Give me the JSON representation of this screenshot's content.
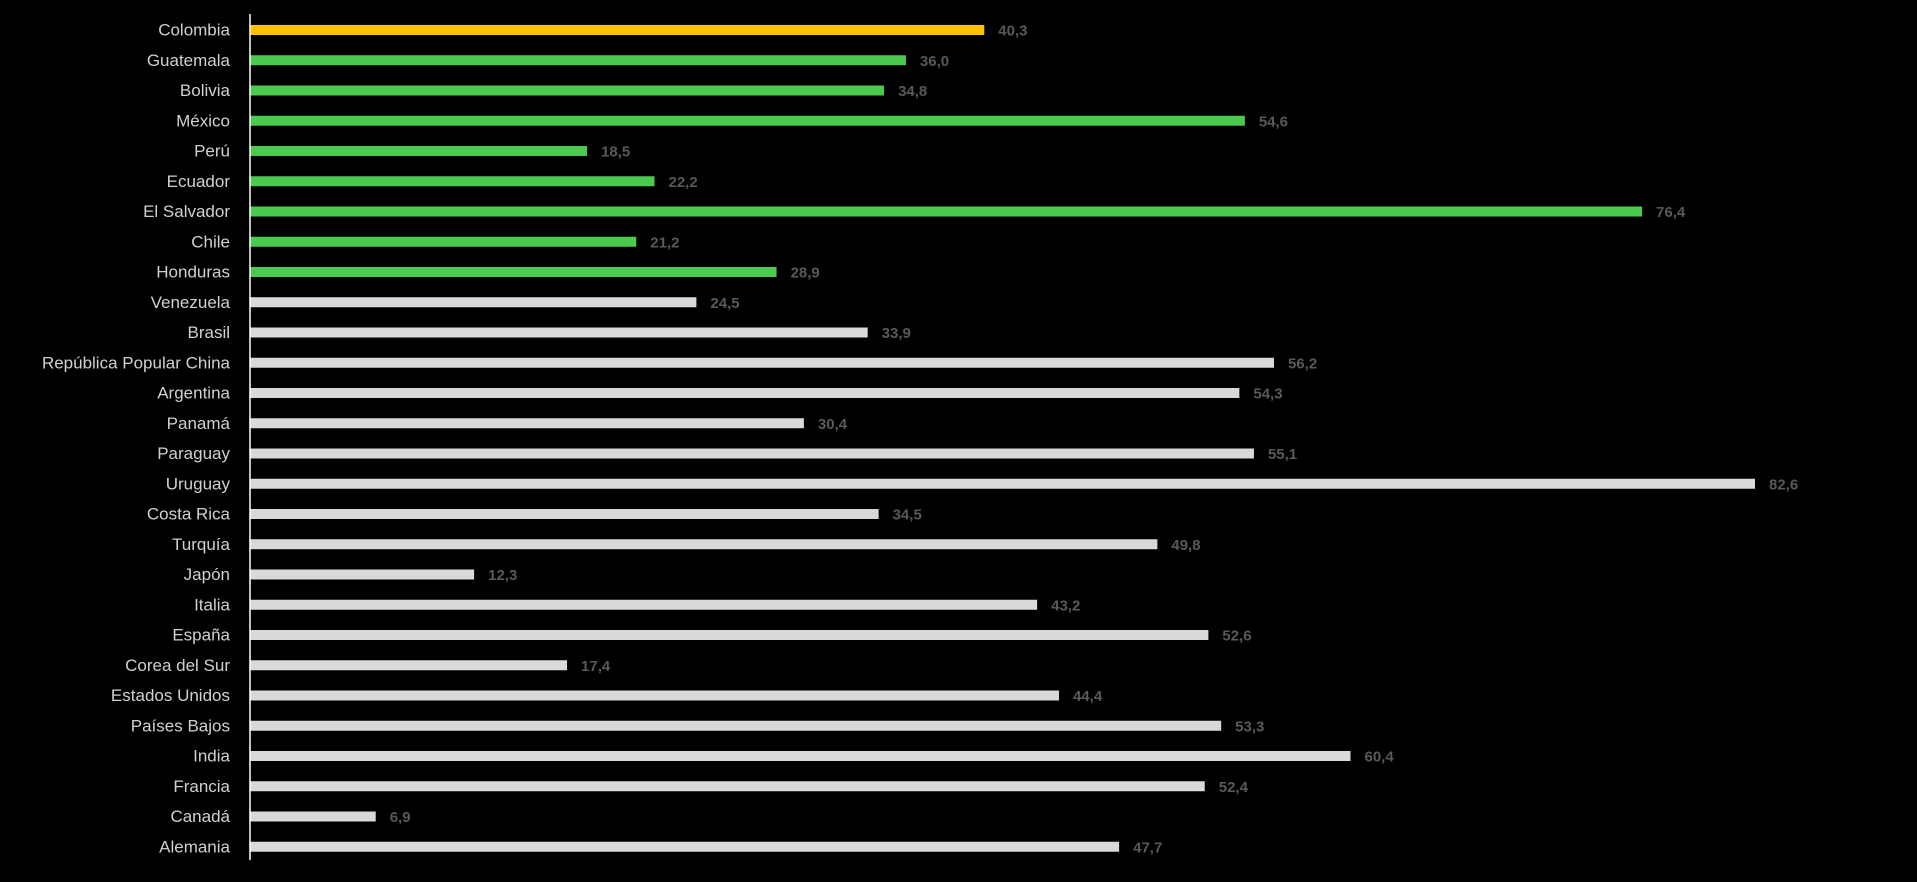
{
  "chart_data": {
    "type": "bar",
    "orientation": "horizontal",
    "categories": [
      "Colombia",
      "Guatemala",
      "Bolivia",
      "México",
      "Perú",
      "Ecuador",
      "El Salvador",
      "Chile",
      "Honduras",
      "Venezuela",
      "Brasil",
      "República Popular China",
      "Argentina",
      "Panamá",
      "Paraguay",
      "Uruguay",
      "Costa Rica",
      "Turquía",
      "Japón",
      "Italia",
      "España",
      "Corea del Sur",
      "Estados Unidos",
      "Países Bajos",
      "India",
      "Francia",
      "Canadá",
      "Alemania"
    ],
    "values": [
      40.3,
      36.0,
      34.8,
      54.6,
      18.5,
      22.2,
      76.4,
      21.2,
      28.9,
      24.5,
      33.9,
      56.2,
      54.3,
      30.4,
      55.1,
      82.6,
      34.5,
      49.8,
      12.3,
      43.2,
      52.6,
      17.4,
      44.4,
      53.3,
      60.4,
      52.4,
      6.9,
      47.7
    ],
    "value_labels": [
      "40,3",
      "36,0",
      "34,8",
      "54,6",
      "18,5",
      "22,2",
      "76,4",
      "21,2",
      "28,9",
      "24,5",
      "33,9",
      "56,2",
      "54,3",
      "30,4",
      "55,1",
      "82,6",
      "34,5",
      "49,8",
      "12,3",
      "43,2",
      "52,6",
      "17,4",
      "44,4",
      "53,3",
      "60,4",
      "52,4",
      "6,9",
      "47,7"
    ],
    "groups": [
      "highlight",
      "group",
      "group",
      "group",
      "group",
      "group",
      "group",
      "group",
      "group",
      "other",
      "other",
      "other",
      "other",
      "other",
      "other",
      "other",
      "other",
      "other",
      "other",
      "other",
      "other",
      "other",
      "other",
      "other",
      "other",
      "other",
      "other",
      "other"
    ],
    "colors": {
      "highlight": "#FFC000",
      "group": "#4CC94F",
      "other": "#D9D9D9"
    },
    "xlim": [
      0,
      90
    ],
    "title": "",
    "xlabel": "",
    "ylabel": "",
    "grid": false,
    "legend": "none"
  }
}
